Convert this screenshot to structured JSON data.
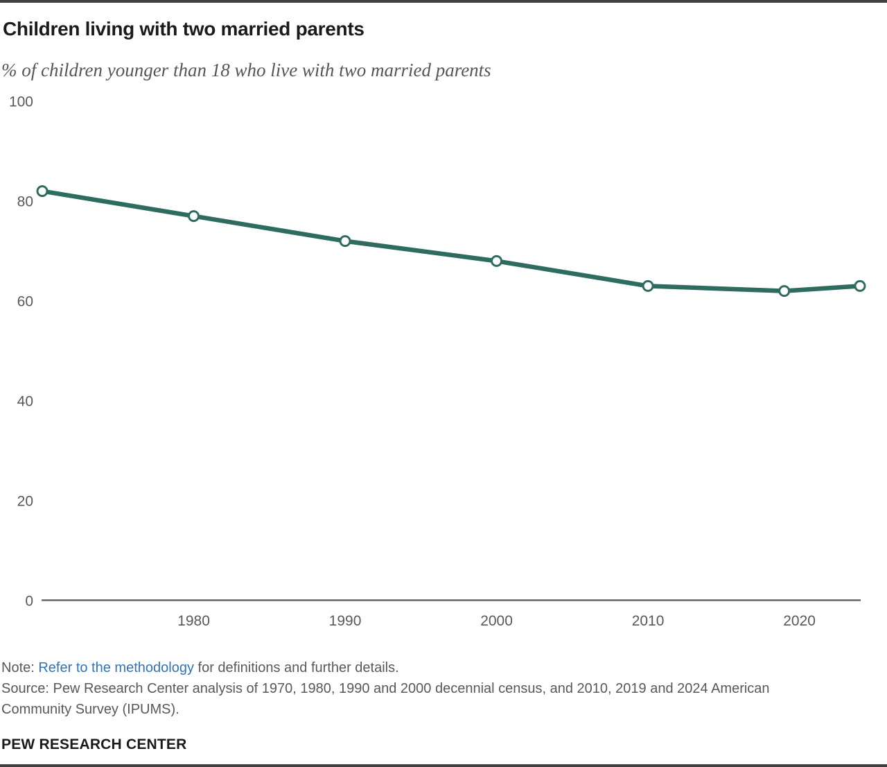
{
  "chart_data": {
    "type": "line",
    "title": "Children living with two married parents",
    "subtitle": "% of children younger than 18 who live with two married parents",
    "x": [
      1970,
      1980,
      1990,
      2000,
      2010,
      2019,
      2024
    ],
    "series": [
      {
        "name": "Children living with two married parents",
        "values": [
          82,
          77,
          72,
          68,
          63,
          62,
          63
        ]
      }
    ],
    "x_ticks": [
      1980,
      1990,
      2000,
      2010,
      2020
    ],
    "y_ticks": [
      0,
      20,
      40,
      60,
      80,
      100
    ],
    "xlim": [
      1970,
      2024
    ],
    "ylim": [
      0,
      100
    ],
    "grid": false,
    "legend": "none",
    "line_color": "#2e6c5f",
    "marker": "open-circle",
    "axis_color": "#666666",
    "tick_label_color": "#58585a"
  },
  "footer": {
    "note_prefix": "Note: ",
    "note_link": "Refer to the methodology",
    "note_suffix": " for definitions and further details.",
    "source": "Source: Pew Research Center analysis of 1970, 1980, 1990 and 2000 decennial census, and 2010, 2019 and 2024 American Community Survey (IPUMS).",
    "brand": "PEW RESEARCH CENTER"
  },
  "colors": {
    "accent": "#2e6c5f",
    "link": "#3173b5",
    "text_muted": "#58585a",
    "title_text": "#1a1a1a",
    "border": "#404040"
  }
}
